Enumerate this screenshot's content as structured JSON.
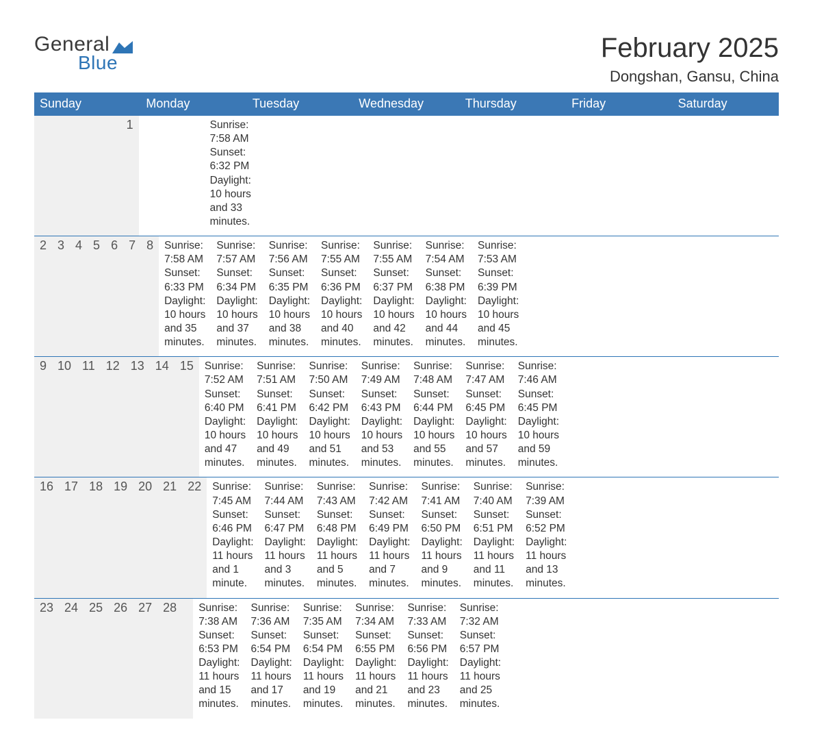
{
  "logo": {
    "text1": "General",
    "text2": "Blue",
    "brand_color": "#2e75b6"
  },
  "title": {
    "month": "February 2025",
    "location": "Dongshan, Gansu, China"
  },
  "colors": {
    "header_bg": "#3b78b5",
    "header_text": "#ffffff",
    "rule": "#2e75b6",
    "daynum_bg": "#f0f0f0",
    "text": "#333333"
  },
  "weekdays": [
    "Sunday",
    "Monday",
    "Tuesday",
    "Wednesday",
    "Thursday",
    "Friday",
    "Saturday"
  ],
  "weeks": [
    [
      null,
      null,
      null,
      null,
      null,
      null,
      {
        "n": "1",
        "sunrise": "7:58 AM",
        "sunset": "6:32 PM",
        "daylight": "10 hours and 33 minutes."
      }
    ],
    [
      {
        "n": "2",
        "sunrise": "7:58 AM",
        "sunset": "6:33 PM",
        "daylight": "10 hours and 35 minutes."
      },
      {
        "n": "3",
        "sunrise": "7:57 AM",
        "sunset": "6:34 PM",
        "daylight": "10 hours and 37 minutes."
      },
      {
        "n": "4",
        "sunrise": "7:56 AM",
        "sunset": "6:35 PM",
        "daylight": "10 hours and 38 minutes."
      },
      {
        "n": "5",
        "sunrise": "7:55 AM",
        "sunset": "6:36 PM",
        "daylight": "10 hours and 40 minutes."
      },
      {
        "n": "6",
        "sunrise": "7:55 AM",
        "sunset": "6:37 PM",
        "daylight": "10 hours and 42 minutes."
      },
      {
        "n": "7",
        "sunrise": "7:54 AM",
        "sunset": "6:38 PM",
        "daylight": "10 hours and 44 minutes."
      },
      {
        "n": "8",
        "sunrise": "7:53 AM",
        "sunset": "6:39 PM",
        "daylight": "10 hours and 45 minutes."
      }
    ],
    [
      {
        "n": "9",
        "sunrise": "7:52 AM",
        "sunset": "6:40 PM",
        "daylight": "10 hours and 47 minutes."
      },
      {
        "n": "10",
        "sunrise": "7:51 AM",
        "sunset": "6:41 PM",
        "daylight": "10 hours and 49 minutes."
      },
      {
        "n": "11",
        "sunrise": "7:50 AM",
        "sunset": "6:42 PM",
        "daylight": "10 hours and 51 minutes."
      },
      {
        "n": "12",
        "sunrise": "7:49 AM",
        "sunset": "6:43 PM",
        "daylight": "10 hours and 53 minutes."
      },
      {
        "n": "13",
        "sunrise": "7:48 AM",
        "sunset": "6:44 PM",
        "daylight": "10 hours and 55 minutes."
      },
      {
        "n": "14",
        "sunrise": "7:47 AM",
        "sunset": "6:45 PM",
        "daylight": "10 hours and 57 minutes."
      },
      {
        "n": "15",
        "sunrise": "7:46 AM",
        "sunset": "6:45 PM",
        "daylight": "10 hours and 59 minutes."
      }
    ],
    [
      {
        "n": "16",
        "sunrise": "7:45 AM",
        "sunset": "6:46 PM",
        "daylight": "11 hours and 1 minute."
      },
      {
        "n": "17",
        "sunrise": "7:44 AM",
        "sunset": "6:47 PM",
        "daylight": "11 hours and 3 minutes."
      },
      {
        "n": "18",
        "sunrise": "7:43 AM",
        "sunset": "6:48 PM",
        "daylight": "11 hours and 5 minutes."
      },
      {
        "n": "19",
        "sunrise": "7:42 AM",
        "sunset": "6:49 PM",
        "daylight": "11 hours and 7 minutes."
      },
      {
        "n": "20",
        "sunrise": "7:41 AM",
        "sunset": "6:50 PM",
        "daylight": "11 hours and 9 minutes."
      },
      {
        "n": "21",
        "sunrise": "7:40 AM",
        "sunset": "6:51 PM",
        "daylight": "11 hours and 11 minutes."
      },
      {
        "n": "22",
        "sunrise": "7:39 AM",
        "sunset": "6:52 PM",
        "daylight": "11 hours and 13 minutes."
      }
    ],
    [
      {
        "n": "23",
        "sunrise": "7:38 AM",
        "sunset": "6:53 PM",
        "daylight": "11 hours and 15 minutes."
      },
      {
        "n": "24",
        "sunrise": "7:36 AM",
        "sunset": "6:54 PM",
        "daylight": "11 hours and 17 minutes."
      },
      {
        "n": "25",
        "sunrise": "7:35 AM",
        "sunset": "6:54 PM",
        "daylight": "11 hours and 19 minutes."
      },
      {
        "n": "26",
        "sunrise": "7:34 AM",
        "sunset": "6:55 PM",
        "daylight": "11 hours and 21 minutes."
      },
      {
        "n": "27",
        "sunrise": "7:33 AM",
        "sunset": "6:56 PM",
        "daylight": "11 hours and 23 minutes."
      },
      {
        "n": "28",
        "sunrise": "7:32 AM",
        "sunset": "6:57 PM",
        "daylight": "11 hours and 25 minutes."
      },
      null
    ]
  ],
  "labels": {
    "sunrise": "Sunrise: ",
    "sunset": "Sunset: ",
    "daylight": "Daylight: "
  }
}
